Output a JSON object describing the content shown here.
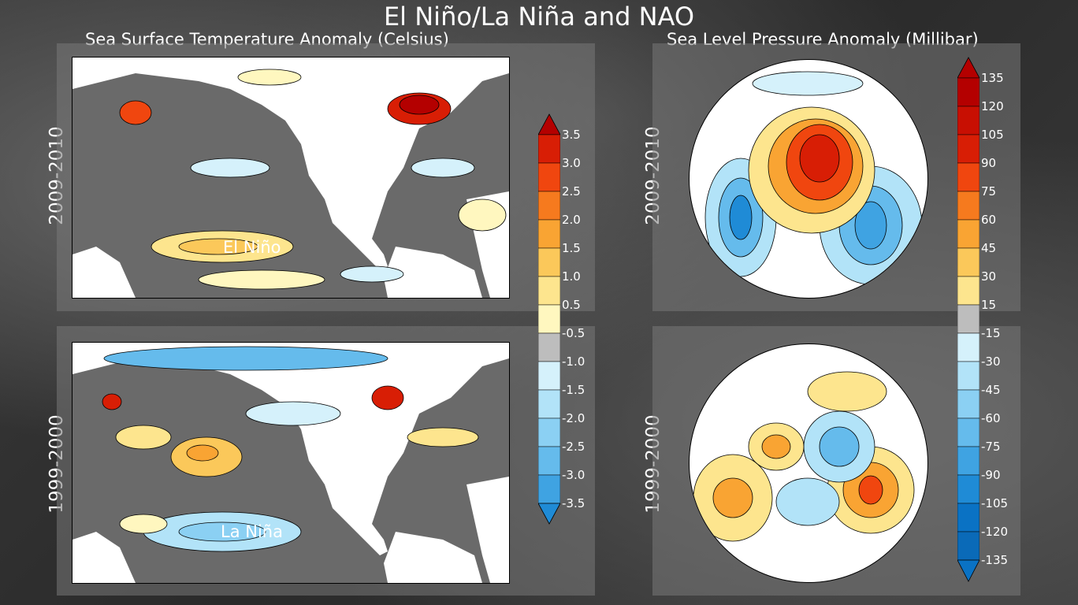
{
  "title": "El Niño/La Niña and NAO",
  "sst_title": "Sea Surface Temperature Anomaly (Celsius)",
  "slp_title": "Sea Level Pressure Anomaly (Millibar)",
  "row_labels": [
    "2009-2010",
    "1999-2000"
  ],
  "labels": {
    "el_nino": "El Niño",
    "la_nina": "La Niña"
  },
  "sst_ticks": [
    "3.5",
    "3.0",
    "2.5",
    "2.0",
    "1.5",
    "1.0",
    "0.5",
    "-0.5",
    "-1.0",
    "-1.5",
    "-2.0",
    "-2.5",
    "-3.0",
    "-3.5"
  ],
  "slp_ticks": [
    "135",
    "120",
    "105",
    "90",
    "75",
    "60",
    "45",
    "30",
    "15",
    "-15",
    "-30",
    "-45",
    "-60",
    "-75",
    "-90",
    "-105",
    "-120",
    "-135"
  ],
  "colors": {
    "warm": [
      "#b40000",
      "#d81e05",
      "#f0460f",
      "#f67a1e",
      "#f9a433",
      "#fbc85a",
      "#fde58e",
      "#fff7bf"
    ],
    "cool": [
      "#d5f1fb",
      "#b2e3f8",
      "#8bd0f3",
      "#65bbec",
      "#3fa3e2",
      "#1f8bd6",
      "#0a72c4"
    ],
    "neutral": "#bdbdbd",
    "land": "#ffffff",
    "ocean": "#6a6a6a"
  }
}
